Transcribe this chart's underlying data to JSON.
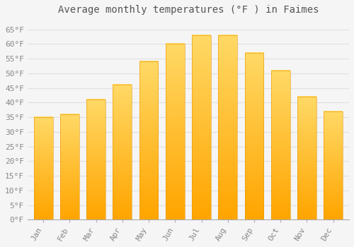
{
  "title": "Average monthly temperatures (°F ) in Faimes",
  "months": [
    "Jan",
    "Feb",
    "Mar",
    "Apr",
    "May",
    "Jun",
    "Jul",
    "Aug",
    "Sep",
    "Oct",
    "Nov",
    "Dec"
  ],
  "values": [
    35,
    36,
    41,
    46,
    54,
    60,
    63,
    63,
    57,
    51,
    42,
    37
  ],
  "bar_color_top": "#FFD966",
  "bar_color_bottom": "#FFA500",
  "bar_edge_color": "#E89400",
  "background_color": "#F5F5F5",
  "plot_bg_color": "#F5F5F5",
  "grid_color": "#E0E0E0",
  "title_fontsize": 10,
  "tick_fontsize": 8,
  "tick_color": "#888888",
  "title_color": "#555555",
  "ylim": [
    0,
    68
  ],
  "yticks": [
    0,
    5,
    10,
    15,
    20,
    25,
    30,
    35,
    40,
    45,
    50,
    55,
    60,
    65
  ]
}
